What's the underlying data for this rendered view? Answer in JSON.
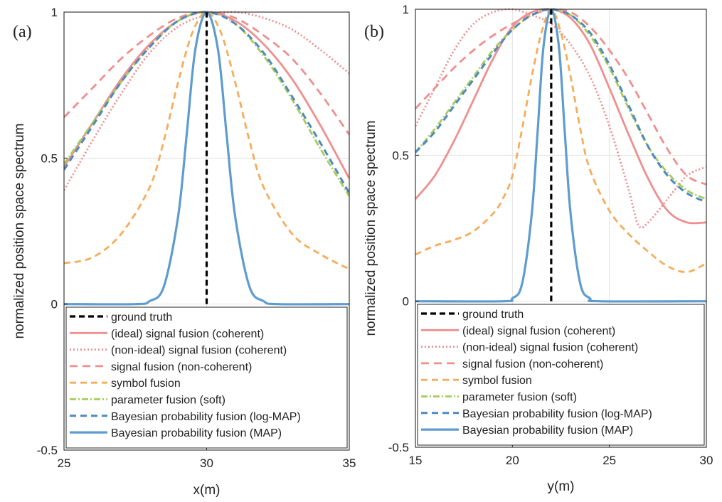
{
  "figure": {
    "legend_entries": [
      {
        "key": "truth",
        "label": "ground truth",
        "color": "#000000",
        "dash": "8,5",
        "width": 3.2
      },
      {
        "key": "ideal",
        "label": "(ideal) signal fusion (coherent)",
        "color": "#ef8f8f",
        "dash": "",
        "width": 2.8
      },
      {
        "key": "nonideal",
        "label": "(non-ideal) signal fusion (coherent)",
        "color": "#ef8f8f",
        "dash": "2,3",
        "width": 2.8
      },
      {
        "key": "noncoh",
        "label": "signal fusion (non-coherent)",
        "color": "#ef8f8f",
        "dash": "11,7",
        "width": 2.8
      },
      {
        "key": "symbol",
        "label": "symbol fusion",
        "color": "#f5ad5b",
        "dash": "9,6",
        "width": 2.8
      },
      {
        "key": "param",
        "label": "parameter fusion (soft)",
        "color": "#a6cc5a",
        "dash": "9,3,2,3",
        "width": 2.8
      },
      {
        "key": "logmap",
        "label": "Bayesian probability fusion (log-MAP)",
        "color": "#4e89c0",
        "dash": "9,6",
        "width": 3.0
      },
      {
        "key": "map",
        "label": "Bayesian probability fusion (MAP)",
        "color": "#5e9cd0",
        "dash": "",
        "width": 3.2
      }
    ]
  },
  "chart_data": [
    {
      "type": "line",
      "panel_label": "(a)",
      "xlabel": "x(m)",
      "ylabel": "normalized position space spectrum",
      "xlim": [
        25,
        35
      ],
      "ylim": [
        -0.5,
        1
      ],
      "xticks": [
        25,
        30,
        35
      ],
      "xtick_labels": [
        "25",
        "30",
        "35"
      ],
      "yticks": [
        -0.5,
        0,
        0.5,
        1
      ],
      "ytick_labels": [
        "-0.5",
        "0",
        "0.5",
        "1"
      ],
      "grid": true,
      "legend_position": "bottom",
      "series": [
        {
          "key": "noncoh",
          "name": "signal fusion (non-coherent)",
          "x": [
            25,
            26,
            27,
            28,
            29,
            30,
            31,
            32,
            33,
            34,
            35
          ],
          "y": [
            0.64,
            0.74,
            0.84,
            0.92,
            0.98,
            1.0,
            0.98,
            0.92,
            0.84,
            0.72,
            0.58
          ]
        },
        {
          "key": "nonideal",
          "name": "(non-ideal) signal fusion (coherent)",
          "x": [
            25,
            26,
            27,
            28,
            29,
            30,
            31,
            32,
            33,
            34,
            35
          ],
          "y": [
            0.39,
            0.56,
            0.72,
            0.86,
            0.95,
            0.99,
            1.0,
            0.98,
            0.94,
            0.87,
            0.79
          ]
        },
        {
          "key": "ideal",
          "name": "(ideal) signal fusion (coherent)",
          "x": [
            25,
            26,
            27,
            28,
            29,
            30,
            31,
            32,
            33,
            34,
            35
          ],
          "y": [
            0.47,
            0.62,
            0.77,
            0.89,
            0.97,
            1.0,
            0.97,
            0.89,
            0.77,
            0.61,
            0.43
          ]
        },
        {
          "key": "param",
          "name": "parameter fusion (soft)",
          "x": [
            25,
            26,
            27,
            28,
            29,
            30,
            31,
            32,
            33,
            34,
            35
          ],
          "y": [
            0.48,
            0.62,
            0.76,
            0.88,
            0.97,
            1.0,
            0.96,
            0.85,
            0.7,
            0.53,
            0.37
          ]
        },
        {
          "key": "logmap",
          "name": "Bayesian probability fusion (log-MAP)",
          "x": [
            25,
            26,
            27,
            28,
            29,
            30,
            31,
            32,
            33,
            34,
            35
          ],
          "y": [
            0.46,
            0.61,
            0.76,
            0.88,
            0.97,
            1.0,
            0.96,
            0.86,
            0.71,
            0.55,
            0.38
          ]
        },
        {
          "key": "symbol",
          "name": "symbol fusion",
          "x": [
            25,
            26,
            27,
            28,
            28.5,
            29,
            29.5,
            30,
            30.5,
            31,
            31.5,
            32,
            33,
            34,
            35
          ],
          "y": [
            0.14,
            0.16,
            0.24,
            0.4,
            0.56,
            0.76,
            0.93,
            1.0,
            0.93,
            0.76,
            0.56,
            0.4,
            0.24,
            0.17,
            0.12
          ]
        },
        {
          "key": "map",
          "name": "Bayesian probability fusion (MAP)",
          "x": [
            25,
            27.5,
            28,
            28.5,
            29,
            29.3,
            29.6,
            30,
            30.4,
            30.7,
            31,
            31.5,
            32,
            32.5,
            35
          ],
          "y": [
            0,
            0,
            0.01,
            0.06,
            0.3,
            0.58,
            0.87,
            1.0,
            0.87,
            0.58,
            0.3,
            0.06,
            0.01,
            0,
            0
          ]
        },
        {
          "key": "truth",
          "name": "ground truth",
          "x": [
            30,
            30
          ],
          "y": [
            0,
            1
          ]
        }
      ]
    },
    {
      "type": "line",
      "panel_label": "(b)",
      "xlabel": "y(m)",
      "ylabel": "normalized position space spectrum",
      "xlim": [
        15,
        30
      ],
      "ylim": [
        -0.5,
        1
      ],
      "xticks": [
        15,
        20,
        25,
        30
      ],
      "xtick_labels": [
        "15",
        "20",
        "25",
        "30"
      ],
      "yticks": [
        -0.5,
        0,
        0.5,
        1
      ],
      "ytick_labels": [
        "-0.5",
        "0",
        "0.5",
        "1"
      ],
      "grid": true,
      "legend_position": "bottom",
      "series": [
        {
          "key": "noncoh",
          "name": "signal fusion (non-coherent)",
          "x": [
            15,
            16,
            17,
            18,
            19,
            20,
            21,
            22,
            23,
            24,
            25,
            26,
            27,
            28,
            29,
            30
          ],
          "y": [
            0.66,
            0.73,
            0.8,
            0.86,
            0.91,
            0.95,
            0.98,
            1.0,
            0.99,
            0.94,
            0.86,
            0.76,
            0.64,
            0.52,
            0.43,
            0.4
          ]
        },
        {
          "key": "nonideal",
          "name": "(non-ideal) signal fusion (coherent)",
          "x": [
            15,
            16,
            17,
            18,
            19,
            20,
            21,
            22,
            23,
            24,
            25,
            26,
            26.5,
            27,
            28,
            29,
            30
          ],
          "y": [
            0.6,
            0.73,
            0.86,
            0.95,
            0.99,
            1.0,
            0.98,
            0.95,
            0.88,
            0.77,
            0.6,
            0.38,
            0.26,
            0.27,
            0.35,
            0.43,
            0.46
          ]
        },
        {
          "key": "ideal",
          "name": "(ideal) signal fusion (coherent)",
          "x": [
            15,
            16,
            17,
            18,
            19,
            20,
            21,
            22,
            23,
            24,
            25,
            26,
            27,
            28,
            29,
            30
          ],
          "y": [
            0.35,
            0.43,
            0.55,
            0.69,
            0.83,
            0.94,
            0.99,
            1.0,
            0.97,
            0.88,
            0.73,
            0.57,
            0.42,
            0.31,
            0.27,
            0.27
          ]
        },
        {
          "key": "param",
          "name": "parameter fusion (soft)",
          "x": [
            15,
            16,
            17,
            18,
            19,
            20,
            21,
            22,
            23,
            24,
            25,
            26,
            27,
            28,
            29,
            30
          ],
          "y": [
            0.51,
            0.59,
            0.68,
            0.77,
            0.86,
            0.93,
            0.98,
            1.0,
            0.98,
            0.91,
            0.8,
            0.66,
            0.53,
            0.44,
            0.38,
            0.35
          ]
        },
        {
          "key": "logmap",
          "name": "Bayesian probability fusion (log-MAP)",
          "x": [
            15,
            16,
            17,
            18,
            19,
            20,
            21,
            22,
            23,
            24,
            25,
            26,
            27,
            28,
            29,
            30
          ],
          "y": [
            0.51,
            0.58,
            0.67,
            0.76,
            0.85,
            0.93,
            0.98,
            1.0,
            0.98,
            0.92,
            0.81,
            0.67,
            0.53,
            0.43,
            0.37,
            0.34
          ]
        },
        {
          "key": "symbol",
          "name": "symbol fusion",
          "x": [
            15,
            16,
            17,
            18,
            19,
            19.5,
            20,
            20.5,
            21,
            21.5,
            22,
            22.5,
            23,
            23.5,
            24,
            25,
            26,
            27,
            28,
            29,
            30
          ],
          "y": [
            0.16,
            0.19,
            0.21,
            0.24,
            0.3,
            0.35,
            0.43,
            0.59,
            0.77,
            0.92,
            1.0,
            0.92,
            0.77,
            0.59,
            0.45,
            0.31,
            0.23,
            0.17,
            0.12,
            0.1,
            0.13
          ]
        },
        {
          "key": "map",
          "name": "Bayesian probability fusion (MAP)",
          "x": [
            15,
            19.5,
            20,
            20.5,
            21,
            21.3,
            21.6,
            22,
            22.4,
            22.7,
            23,
            23.5,
            24,
            24.5,
            30
          ],
          "y": [
            0,
            0,
            0.01,
            0.06,
            0.3,
            0.58,
            0.87,
            1.0,
            0.87,
            0.58,
            0.3,
            0.06,
            0.01,
            0,
            0
          ]
        },
        {
          "key": "truth",
          "name": "ground truth",
          "x": [
            22,
            22
          ],
          "y": [
            0,
            1
          ]
        }
      ]
    }
  ]
}
